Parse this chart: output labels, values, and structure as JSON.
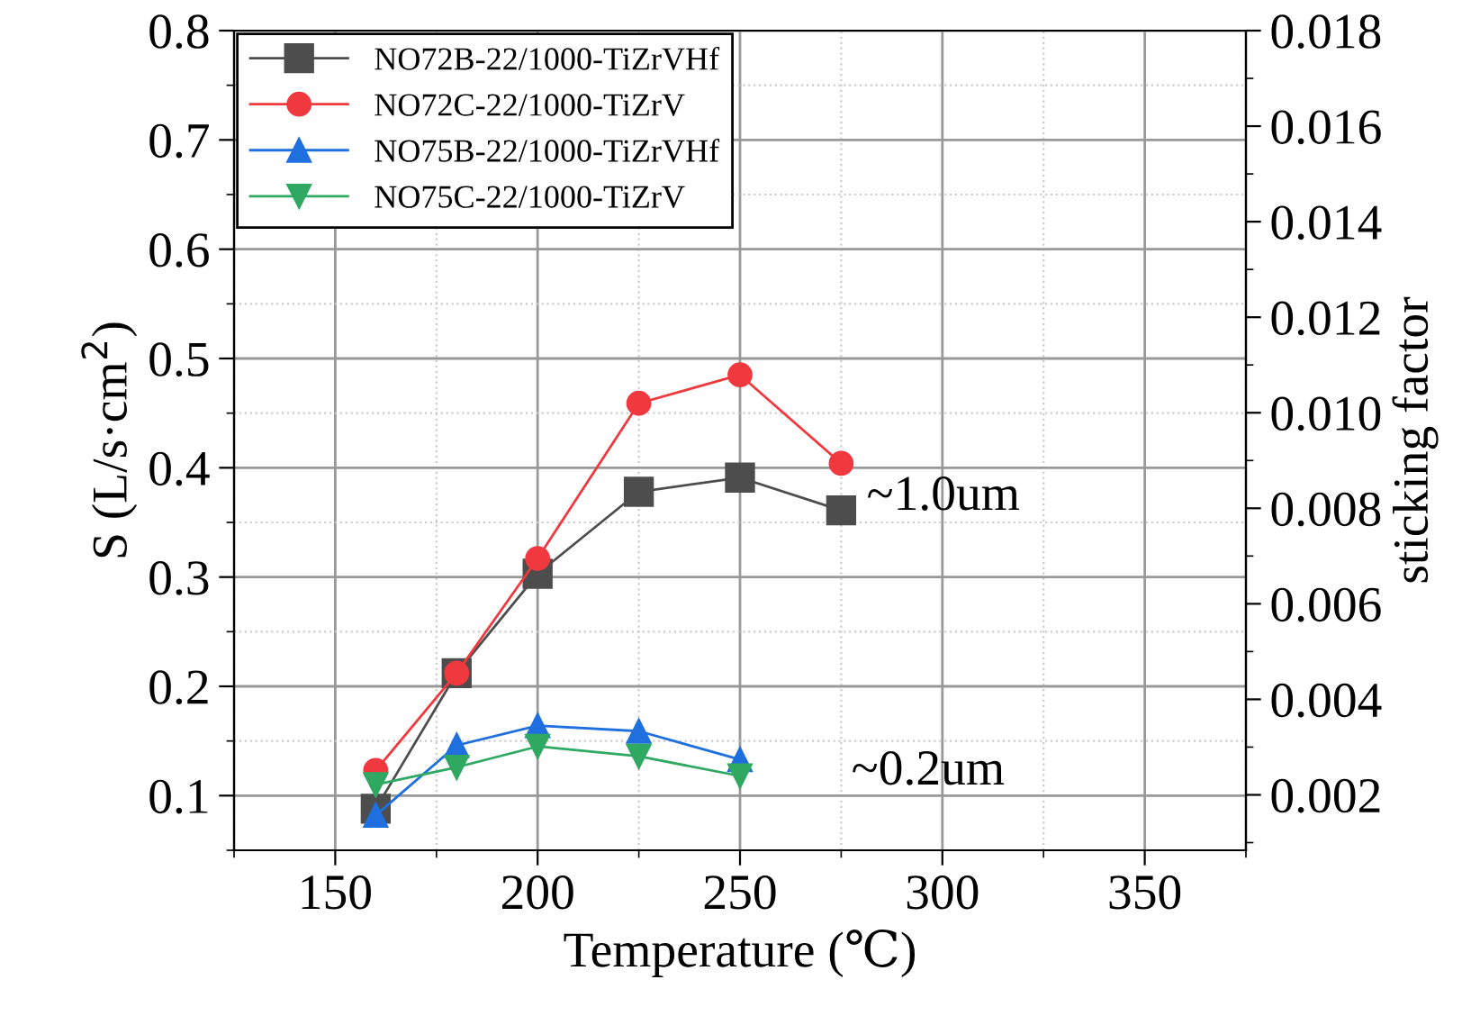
{
  "chart_data": {
    "type": "line",
    "xlabel": "Temperature (℃)",
    "ylabel": "S (L/s·cm$^{2}$)",
    "y2label": "sticking factor",
    "xlim": [
      125,
      375
    ],
    "xticks": [
      150,
      200,
      250,
      300,
      350
    ],
    "ylim": [
      0.05,
      0.8
    ],
    "yticks": [
      0.1,
      0.2,
      0.3,
      0.4,
      0.5,
      0.6,
      0.7,
      0.8
    ],
    "y2lim": [
      0.00084,
      0.018
    ],
    "y2ticks": [
      {
        "value": 0.002,
        "label": "0.002"
      },
      {
        "value": 0.004,
        "label": "0.004"
      },
      {
        "value": 0.006,
        "label": "0.006"
      },
      {
        "value": 0.008,
        "label": "0.008"
      },
      {
        "value": 0.01,
        "label": "0.010"
      },
      {
        "value": 0.012,
        "label": "0.012"
      },
      {
        "value": 0.014,
        "label": "0.014"
      },
      {
        "value": 0.016,
        "label": "0.016"
      },
      {
        "value": 0.018,
        "label": "0.018"
      }
    ],
    "grid": true,
    "legend": "top left",
    "series": [
      {
        "name": "NO72B-22/1000-TiZrVHf",
        "color": "#4d4d4d",
        "marker": "square",
        "x": [
          160,
          180,
          200,
          225,
          250,
          275
        ],
        "values": [
          0.088,
          0.212,
          0.303,
          0.378,
          0.391,
          0.361
        ]
      },
      {
        "name": "NO72C-22/1000-TiZrV",
        "color": "#f0393f",
        "marker": "circle",
        "x": [
          160,
          180,
          200,
          225,
          250,
          275
        ],
        "values": [
          0.123,
          0.212,
          0.317,
          0.459,
          0.485,
          0.404
        ]
      },
      {
        "name": "NO75B-22/1000-TiZrVHf",
        "color": "#1f6fdf",
        "marker": "triangle",
        "x": [
          160,
          180,
          200,
          225,
          250
        ],
        "values": [
          0.082,
          0.146,
          0.164,
          0.159,
          0.133
        ]
      },
      {
        "name": "NO75C-22/1000-TiZrV",
        "color": "#2fa862",
        "marker": "triangle_down",
        "x": [
          160,
          180,
          200,
          225,
          250
        ],
        "values": [
          0.11,
          0.126,
          0.145,
          0.136,
          0.118
        ]
      }
    ],
    "annotations": [
      "~1.0um",
      "~0.2um"
    ]
  }
}
